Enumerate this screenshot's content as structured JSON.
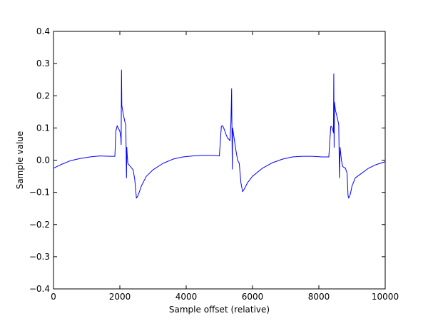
{
  "chart_data": {
    "type": "line",
    "title": "",
    "xlabel": "Sample offset (relative)",
    "ylabel": "Sample value",
    "xlim": [
      0,
      10000
    ],
    "ylim": [
      -0.4,
      0.4
    ],
    "xticks": [
      0,
      2000,
      4000,
      6000,
      8000,
      10000
    ],
    "xtick_labels": [
      "0",
      "2000",
      "4000",
      "6000",
      "8000",
      "10000"
    ],
    "yticks": [
      -0.4,
      -0.3,
      -0.2,
      -0.1,
      0.0,
      0.1,
      0.2,
      0.3,
      0.4
    ],
    "ytick_labels": [
      "−0.4",
      "−0.3",
      "−0.2",
      "−0.1",
      "0.0",
      "0.1",
      "0.2",
      "0.3",
      "0.4"
    ],
    "grid": false,
    "legend": "none",
    "line_color": "#0000ff",
    "series": [
      {
        "x": [
          0,
          200,
          500,
          800,
          1100,
          1400,
          1700,
          1850,
          1880,
          1920,
          1960,
          2000,
          2030,
          2040,
          2050,
          2060,
          2100,
          2150,
          2180,
          2200,
          2210,
          2220,
          2240,
          2280,
          2320,
          2400,
          2450,
          2500,
          2550,
          2650,
          2800,
          3000,
          3300,
          3600,
          3900,
          4200,
          4500,
          4800,
          5000,
          5060,
          5100,
          5150,
          5200,
          5250,
          5290,
          5320,
          5350,
          5370,
          5380,
          5390,
          5400,
          5450,
          5500,
          5550,
          5600,
          5650,
          5700,
          5750,
          5850,
          6000,
          6300,
          6600,
          6900,
          7200,
          7500,
          7800,
          8100,
          8300,
          8360,
          8380,
          8420,
          8440,
          8450,
          8460,
          8470,
          8500,
          8560,
          8600,
          8620,
          8640,
          8680,
          8720,
          8800,
          8850,
          8880,
          8900,
          8950,
          9000,
          9100,
          9300,
          9500,
          9700,
          9900,
          10000
        ],
        "y": [
          -0.025,
          -0.015,
          -0.002,
          0.005,
          0.01,
          0.013,
          0.012,
          0.012,
          0.09,
          0.107,
          0.098,
          0.09,
          0.07,
          0.048,
          0.28,
          0.17,
          0.145,
          0.12,
          0.11,
          -0.055,
          0.04,
          0.02,
          -0.01,
          -0.015,
          -0.02,
          -0.03,
          -0.06,
          -0.118,
          -0.11,
          -0.08,
          -0.05,
          -0.03,
          -0.01,
          0.003,
          0.01,
          0.013,
          0.015,
          0.015,
          0.013,
          0.105,
          0.107,
          0.095,
          0.08,
          0.068,
          0.065,
          0.06,
          0.12,
          0.222,
          0.09,
          -0.028,
          0.1,
          0.065,
          0.03,
          0.0,
          -0.01,
          -0.07,
          -0.098,
          -0.09,
          -0.07,
          -0.05,
          -0.025,
          -0.008,
          0.003,
          0.01,
          0.012,
          0.012,
          0.01,
          0.01,
          0.105,
          0.105,
          0.095,
          0.085,
          0.268,
          0.04,
          0.18,
          0.155,
          0.13,
          0.11,
          -0.055,
          0.04,
          0.0,
          -0.02,
          -0.025,
          -0.04,
          -0.11,
          -0.118,
          -0.105,
          -0.08,
          -0.055,
          -0.04,
          -0.025,
          -0.015,
          -0.008,
          -0.005
        ]
      }
    ]
  }
}
